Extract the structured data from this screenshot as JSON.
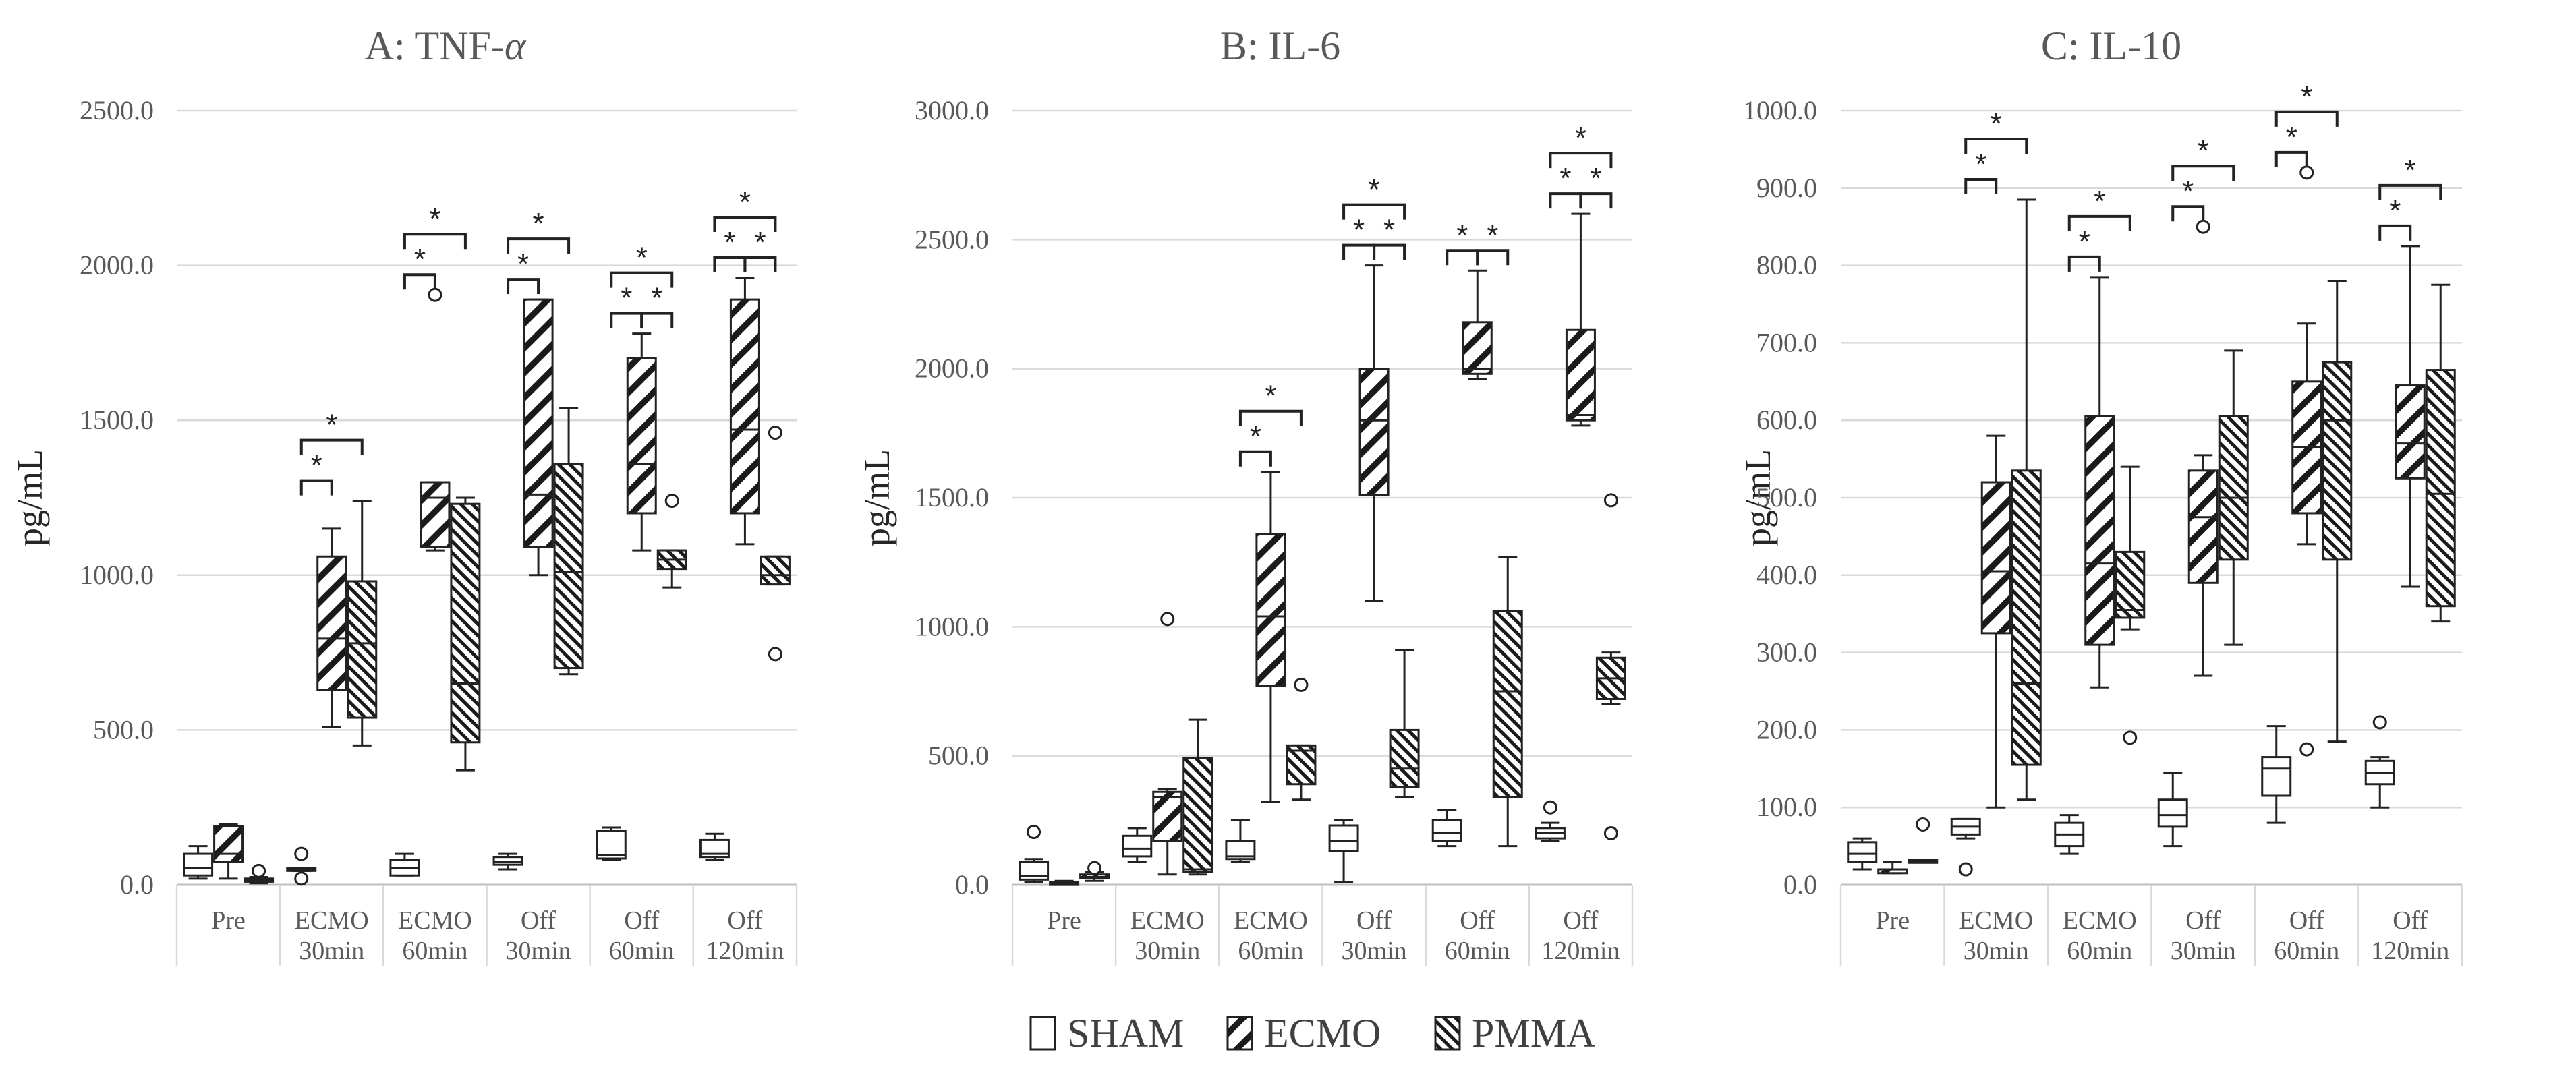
{
  "legend": [
    {
      "name": "SHAM",
      "pattern": "none"
    },
    {
      "name": "ECMO",
      "pattern": "diag-down"
    },
    {
      "name": "PMMA",
      "pattern": "diag-up-dense"
    }
  ],
  "chart_data": [
    {
      "type": "box",
      "title": "A: TNF-",
      "title_symbol": "α",
      "ylabel": "pg/mL",
      "ylim": [
        0,
        2500
      ],
      "yticks": [
        0,
        500,
        1000,
        1500,
        2000,
        2500
      ],
      "ytick_labels": [
        "0.0",
        "500.0",
        "1000.0",
        "1500.0",
        "2000.0",
        "2500.0"
      ],
      "categories": [
        [
          "Pre",
          ""
        ],
        [
          "ECMO",
          "30min"
        ],
        [
          "ECMO",
          "60min"
        ],
        [
          "Off",
          "30min"
        ],
        [
          "Off",
          "60min"
        ],
        [
          "Off",
          "120min"
        ]
      ],
      "series": [
        {
          "name": "SHAM",
          "boxes": [
            {
              "min": 20,
              "q1": 30,
              "median": 55,
              "q3": 100,
              "max": 125,
              "outliers": []
            },
            {
              "min": 45,
              "q1": 45,
              "median": 50,
              "q3": 55,
              "max": 55,
              "outliers": [
                20,
                100
              ]
            },
            {
              "min": 30,
              "q1": 30,
              "median": 55,
              "q3": 80,
              "max": 100,
              "outliers": []
            },
            {
              "min": 50,
              "q1": 65,
              "median": 75,
              "q3": 90,
              "max": 100,
              "outliers": []
            },
            {
              "min": 80,
              "q1": 85,
              "median": 95,
              "q3": 175,
              "max": 185,
              "outliers": []
            },
            {
              "min": 80,
              "q1": 90,
              "median": 100,
              "q3": 145,
              "max": 165,
              "outliers": []
            }
          ]
        },
        {
          "name": "ECMO",
          "boxes": [
            {
              "min": 20,
              "q1": 75,
              "median": 100,
              "q3": 190,
              "max": 195,
              "outliers": []
            },
            {
              "min": 510,
              "q1": 630,
              "median": 795,
              "q3": 1060,
              "max": 1150,
              "outliers": []
            },
            {
              "min": 1080,
              "q1": 1090,
              "median": 1250,
              "q3": 1300,
              "max": 1300,
              "outliers": [
                1905
              ]
            },
            {
              "min": 1000,
              "q1": 1090,
              "median": 1260,
              "q3": 1890,
              "max": 1890,
              "outliers": []
            },
            {
              "min": 1080,
              "q1": 1200,
              "median": 1360,
              "q3": 1700,
              "max": 1780,
              "outliers": []
            },
            {
              "min": 1100,
              "q1": 1200,
              "median": 1470,
              "q3": 1890,
              "max": 1960,
              "outliers": []
            }
          ]
        },
        {
          "name": "PMMA",
          "boxes": [
            {
              "min": 5,
              "q1": 10,
              "median": 15,
              "q3": 20,
              "max": 25,
              "outliers": [
                45
              ]
            },
            {
              "min": 450,
              "q1": 540,
              "median": 780,
              "q3": 980,
              "max": 1240,
              "outliers": []
            },
            {
              "min": 370,
              "q1": 460,
              "median": 650,
              "q3": 1230,
              "max": 1250,
              "outliers": []
            },
            {
              "min": 680,
              "q1": 700,
              "median": 1010,
              "q3": 1360,
              "max": 1540,
              "outliers": []
            },
            {
              "min": 960,
              "q1": 1020,
              "median": 1050,
              "q3": 1080,
              "max": 1080,
              "outliers": [
                1240
              ]
            },
            {
              "min": 970,
              "q1": 970,
              "median": 1000,
              "q3": 1060,
              "max": 1060,
              "outliers": [
                745,
                1460
              ]
            }
          ]
        }
      ],
      "significance": [
        {
          "category": 1,
          "from": "SHAM",
          "to": "ECMO",
          "label": "*"
        },
        {
          "category": 1,
          "from": "SHAM",
          "to": "PMMA",
          "label": "*"
        },
        {
          "category": 2,
          "from": "SHAM",
          "to": "ECMO",
          "label": "*"
        },
        {
          "category": 2,
          "from": "SHAM",
          "to": "PMMA",
          "label": "*"
        },
        {
          "category": 3,
          "from": "SHAM",
          "to": "ECMO",
          "label": "*"
        },
        {
          "category": 3,
          "from": "SHAM",
          "to": "PMMA",
          "label": "*"
        },
        {
          "category": 4,
          "from": "SHAM",
          "to": "ECMO",
          "label": "*"
        },
        {
          "category": 4,
          "from": "ECMO",
          "to": "PMMA",
          "label": "*"
        },
        {
          "category": 4,
          "from": "SHAM",
          "to": "PMMA",
          "label": "*"
        },
        {
          "category": 5,
          "from": "SHAM",
          "to": "ECMO",
          "label": "*"
        },
        {
          "category": 5,
          "from": "ECMO",
          "to": "PMMA",
          "label": "*"
        },
        {
          "category": 5,
          "from": "SHAM",
          "to": "PMMA",
          "label": "*"
        }
      ]
    },
    {
      "type": "box",
      "title": "B: IL-6",
      "title_symbol": "",
      "ylabel": "pg/mL",
      "ylim": [
        0,
        3000
      ],
      "yticks": [
        0,
        500,
        1000,
        1500,
        2000,
        2500,
        3000
      ],
      "ytick_labels": [
        "0.0",
        "500.0",
        "1000.0",
        "1500.0",
        "2000.0",
        "2500.0",
        "3000.0"
      ],
      "categories": [
        [
          "Pre",
          ""
        ],
        [
          "ECMO",
          "30min"
        ],
        [
          "ECMO",
          "60min"
        ],
        [
          "Off",
          "30min"
        ],
        [
          "Off",
          "60min"
        ],
        [
          "Off",
          "120min"
        ]
      ],
      "series": [
        {
          "name": "SHAM",
          "boxes": [
            {
              "min": 10,
              "q1": 20,
              "median": 35,
              "q3": 90,
              "max": 100,
              "outliers": [
                205
              ]
            },
            {
              "min": 90,
              "q1": 110,
              "median": 140,
              "q3": 190,
              "max": 220,
              "outliers": []
            },
            {
              "min": 90,
              "q1": 100,
              "median": 110,
              "q3": 170,
              "max": 250,
              "outliers": []
            },
            {
              "min": 10,
              "q1": 130,
              "median": 170,
              "q3": 230,
              "max": 250,
              "outliers": []
            },
            {
              "min": 150,
              "q1": 170,
              "median": 200,
              "q3": 250,
              "max": 290,
              "outliers": []
            },
            {
              "min": 170,
              "q1": 180,
              "median": 200,
              "q3": 220,
              "max": 240,
              "outliers": [
                300
              ]
            }
          ]
        },
        {
          "name": "ECMO",
          "boxes": [
            {
              "min": 0,
              "q1": 0,
              "median": 5,
              "q3": 10,
              "max": 15,
              "outliers": []
            },
            {
              "min": 40,
              "q1": 170,
              "median": 340,
              "q3": 360,
              "max": 370,
              "outliers": [
                1030
              ]
            },
            {
              "min": 320,
              "q1": 770,
              "median": 1040,
              "q3": 1360,
              "max": 1600,
              "outliers": []
            },
            {
              "min": 1100,
              "q1": 1510,
              "median": 1800,
              "q3": 2000,
              "max": 2400,
              "outliers": []
            },
            {
              "min": 1960,
              "q1": 1980,
              "median": 2000,
              "q3": 2180,
              "max": 2380,
              "outliers": []
            },
            {
              "min": 1780,
              "q1": 1800,
              "median": 1820,
              "q3": 2150,
              "max": 2600,
              "outliers": []
            }
          ]
        },
        {
          "name": "PMMA",
          "boxes": [
            {
              "min": 15,
              "q1": 25,
              "median": 30,
              "q3": 40,
              "max": 50,
              "outliers": [
                65
              ]
            },
            {
              "min": 40,
              "q1": 50,
              "median": 60,
              "q3": 490,
              "max": 640,
              "outliers": []
            },
            {
              "min": 330,
              "q1": 390,
              "median": 520,
              "q3": 540,
              "max": 540,
              "outliers": [
                775
              ]
            },
            {
              "min": 340,
              "q1": 380,
              "median": 450,
              "q3": 600,
              "max": 910,
              "outliers": []
            },
            {
              "min": 150,
              "q1": 340,
              "median": 750,
              "q3": 1060,
              "max": 1270,
              "outliers": []
            },
            {
              "min": 700,
              "q1": 720,
              "median": 800,
              "q3": 880,
              "max": 900,
              "outliers": [
                200,
                1490
              ]
            }
          ]
        }
      ],
      "significance": [
        {
          "category": 2,
          "from": "SHAM",
          "to": "ECMO",
          "label": "*"
        },
        {
          "category": 2,
          "from": "SHAM",
          "to": "PMMA",
          "label": "*"
        },
        {
          "category": 3,
          "from": "SHAM",
          "to": "ECMO",
          "label": "*"
        },
        {
          "category": 3,
          "from": "ECMO",
          "to": "PMMA",
          "label": "*"
        },
        {
          "category": 3,
          "from": "SHAM",
          "to": "PMMA",
          "label": "*"
        },
        {
          "category": 4,
          "from": "SHAM",
          "to": "ECMO",
          "label": "*"
        },
        {
          "category": 4,
          "from": "ECMO",
          "to": "PMMA",
          "label": "*"
        },
        {
          "category": 5,
          "from": "SHAM",
          "to": "ECMO",
          "label": "*"
        },
        {
          "category": 5,
          "from": "ECMO",
          "to": "PMMA",
          "label": "*"
        },
        {
          "category": 5,
          "from": "SHAM",
          "to": "PMMA",
          "label": "*"
        }
      ]
    },
    {
      "type": "box",
      "title": "C: IL-10",
      "title_symbol": "",
      "ylabel": "pg/mL",
      "ylim": [
        0,
        1000
      ],
      "yticks": [
        0,
        100,
        200,
        300,
        400,
        500,
        600,
        700,
        800,
        900,
        1000
      ],
      "ytick_labels": [
        "0.0",
        "100.0",
        "200.0",
        "300.0",
        "400.0",
        "500.0",
        "600.0",
        "700.0",
        "800.0",
        "900.0",
        "1000.0"
      ],
      "categories": [
        [
          "Pre",
          ""
        ],
        [
          "ECMO",
          "30min"
        ],
        [
          "ECMO",
          "60min"
        ],
        [
          "Off",
          "30min"
        ],
        [
          "Off",
          "60min"
        ],
        [
          "Off",
          "120min"
        ]
      ],
      "series": [
        {
          "name": "SHAM",
          "boxes": [
            {
              "min": 20,
              "q1": 30,
              "median": 40,
              "q3": 55,
              "max": 60,
              "outliers": []
            },
            {
              "min": 60,
              "q1": 65,
              "median": 75,
              "q3": 85,
              "max": 85,
              "outliers": [
                20
              ]
            },
            {
              "min": 40,
              "q1": 50,
              "median": 65,
              "q3": 80,
              "max": 90,
              "outliers": []
            },
            {
              "min": 50,
              "q1": 75,
              "median": 90,
              "q3": 110,
              "max": 145,
              "outliers": []
            },
            {
              "min": 80,
              "q1": 115,
              "median": 150,
              "q3": 165,
              "max": 205,
              "outliers": []
            },
            {
              "min": 100,
              "q1": 130,
              "median": 145,
              "q3": 160,
              "max": 165,
              "outliers": [
                210
              ]
            }
          ]
        },
        {
          "name": "ECMO",
          "boxes": [
            {
              "min": 15,
              "q1": 15,
              "median": 20,
              "q3": 20,
              "max": 30,
              "outliers": []
            },
            {
              "min": 100,
              "q1": 325,
              "median": 405,
              "q3": 520,
              "max": 580,
              "outliers": []
            },
            {
              "min": 255,
              "q1": 310,
              "median": 415,
              "q3": 605,
              "max": 785,
              "outliers": []
            },
            {
              "min": 270,
              "q1": 390,
              "median": 475,
              "q3": 535,
              "max": 555,
              "outliers": [
                850
              ]
            },
            {
              "min": 440,
              "q1": 480,
              "median": 565,
              "q3": 650,
              "max": 725,
              "outliers": [
                175,
                920
              ]
            },
            {
              "min": 385,
              "q1": 525,
              "median": 570,
              "q3": 645,
              "max": 825,
              "outliers": []
            }
          ]
        },
        {
          "name": "PMMA",
          "boxes": [
            {
              "min": 30,
              "q1": 30,
              "median": 30,
              "q3": 32,
              "max": 32,
              "outliers": [
                78
              ]
            },
            {
              "min": 110,
              "q1": 155,
              "median": 260,
              "q3": 535,
              "max": 885,
              "outliers": []
            },
            {
              "min": 330,
              "q1": 345,
              "median": 355,
              "q3": 430,
              "max": 540,
              "outliers": [
                190
              ]
            },
            {
              "min": 310,
              "q1": 420,
              "median": 500,
              "q3": 605,
              "max": 690,
              "outliers": []
            },
            {
              "min": 185,
              "q1": 420,
              "median": 600,
              "q3": 675,
              "max": 780,
              "outliers": []
            },
            {
              "min": 340,
              "q1": 360,
              "median": 505,
              "q3": 665,
              "max": 775,
              "outliers": []
            }
          ]
        }
      ],
      "significance": [
        {
          "category": 1,
          "from": "SHAM",
          "to": "ECMO",
          "label": "*"
        },
        {
          "category": 1,
          "from": "SHAM",
          "to": "PMMA",
          "label": "*"
        },
        {
          "category": 2,
          "from": "SHAM",
          "to": "ECMO",
          "label": "*"
        },
        {
          "category": 2,
          "from": "SHAM",
          "to": "PMMA",
          "label": "*"
        },
        {
          "category": 3,
          "from": "SHAM",
          "to": "ECMO",
          "label": "*"
        },
        {
          "category": 3,
          "from": "SHAM",
          "to": "PMMA",
          "label": "*"
        },
        {
          "category": 4,
          "from": "SHAM",
          "to": "ECMO",
          "label": "*"
        },
        {
          "category": 4,
          "from": "SHAM",
          "to": "PMMA",
          "label": "*"
        },
        {
          "category": 5,
          "from": "SHAM",
          "to": "ECMO",
          "label": "*"
        },
        {
          "category": 5,
          "from": "SHAM",
          "to": "PMMA",
          "label": "*"
        }
      ]
    }
  ]
}
